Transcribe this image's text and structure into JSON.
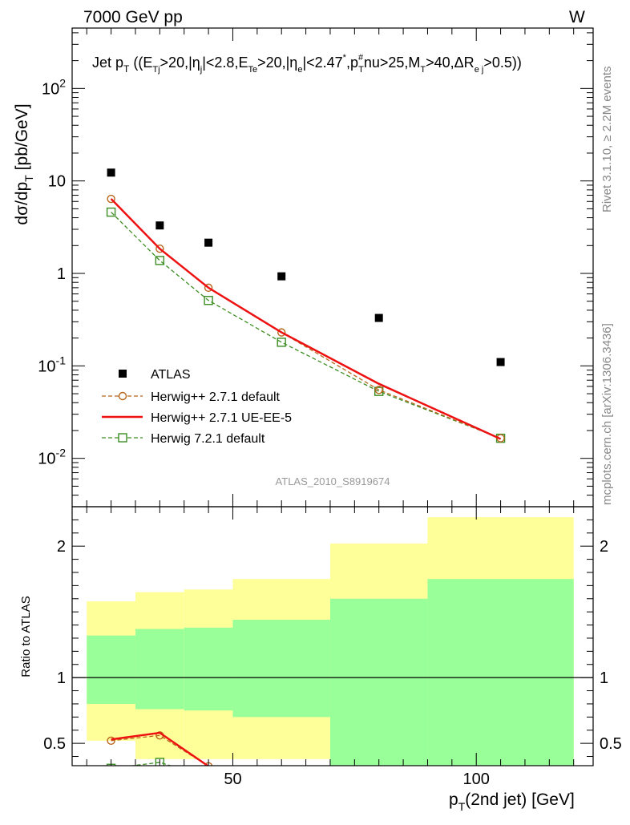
{
  "header": {
    "left": "7000 GeV pp",
    "right": "W"
  },
  "side_labels": {
    "rivet": "Rivet 3.1.10, ≥ 2.2M events",
    "mcplots": "mcplots.cern.ch [arXiv:1306.3436]"
  },
  "watermark": "ATLAS_2010_S8919674",
  "chart_data": [
    {
      "type": "scatter",
      "title": "Jet pT ((ETj>20,|ηj|<2.8,ETe>20,|ηe|<2.47*,pT#nu>25,MT>40,ΔRej>0.5))",
      "ylabel": "dσ/dpT [pb/GeV]",
      "xlim": [
        17,
        124
      ],
      "ylim": [
        0.003,
        450
      ],
      "yscale": "log",
      "y_tick_labels": [
        "10^-2",
        "10^-1",
        "1",
        "10",
        "10^2"
      ],
      "legend_position": "center-left",
      "series": [
        {
          "name": "ATLAS",
          "color": "#000000",
          "marker": "filled-square",
          "x": [
            25,
            35,
            45,
            60,
            80,
            105
          ],
          "y": [
            12.3,
            3.3,
            2.15,
            0.93,
            0.33,
            0.11
          ]
        },
        {
          "name": "Herwig++ 2.7.1 default",
          "color": "#b8651b",
          "marker": "open-circle",
          "line": "dashed",
          "x": [
            25,
            35,
            45,
            60,
            80,
            105
          ],
          "y": [
            6.4,
            1.85,
            0.7,
            0.23,
            0.055,
            0.0165
          ]
        },
        {
          "name": "Herwig++ 2.7.1 UE-EE-5",
          "color": "#ee1111",
          "marker": "none",
          "line": "solid",
          "x": [
            25,
            35,
            45,
            60,
            80,
            105
          ],
          "y": [
            6.4,
            1.85,
            0.7,
            0.23,
            0.064,
            0.0162
          ]
        },
        {
          "name": "Herwig 7.2.1 default",
          "color": "#3b8e22",
          "marker": "open-square",
          "line": "dashed",
          "x": [
            25,
            35,
            45,
            60,
            80,
            105
          ],
          "y": [
            4.6,
            1.38,
            0.51,
            0.18,
            0.053,
            0.0165
          ]
        }
      ]
    },
    {
      "type": "scatter",
      "ylabel": "Ratio to ATLAS",
      "xlabel": "pT(2nd jet) [GeV]",
      "xlim": [
        17,
        124
      ],
      "ylim": [
        0.33,
        2.3
      ],
      "x_ticks": [
        50,
        100
      ],
      "y_ticks": [
        0.5,
        1,
        2
      ],
      "bands": [
        {
          "x0": 20,
          "x1": 30,
          "yellow": [
            0.52,
            1.58
          ],
          "green": [
            0.8,
            1.32
          ]
        },
        {
          "x0": 30,
          "x1": 40,
          "yellow": [
            0.38,
            1.65
          ],
          "green": [
            0.76,
            1.37
          ]
        },
        {
          "x0": 40,
          "x1": 50,
          "yellow": [
            0.38,
            1.67
          ],
          "green": [
            0.75,
            1.38
          ]
        },
        {
          "x0": 50,
          "x1": 70,
          "yellow": [
            0.38,
            1.75
          ],
          "green": [
            0.7,
            1.44
          ]
        },
        {
          "x0": 70,
          "x1": 90,
          "yellow": [
            0.48,
            2.02
          ],
          "green": [
            0.33,
            1.6
          ]
        },
        {
          "x0": 90,
          "x1": 120,
          "yellow": [
            0.33,
            2.22
          ],
          "green": [
            0.33,
            1.75
          ]
        }
      ],
      "series": [
        {
          "name": "Herwig++ 2.7.1 default",
          "color": "#b8651b",
          "marker": "open-circle",
          "line": "dashed",
          "x": [
            25,
            35,
            45
          ],
          "y": [
            0.52,
            0.56,
            0.325
          ]
        },
        {
          "name": "Herwig++ 2.7.1 UE-EE-5",
          "color": "#ee1111",
          "marker": "none",
          "line": "solid",
          "x": [
            25,
            35,
            45
          ],
          "y": [
            0.53,
            0.58,
            0.325
          ]
        },
        {
          "name": "Herwig 7.2.1 default",
          "color": "#3b8e22",
          "marker": "open-square",
          "line": "dashed",
          "x": [
            25,
            35,
            45
          ],
          "y": [
            0.31,
            0.355,
            0.24
          ]
        }
      ]
    }
  ]
}
